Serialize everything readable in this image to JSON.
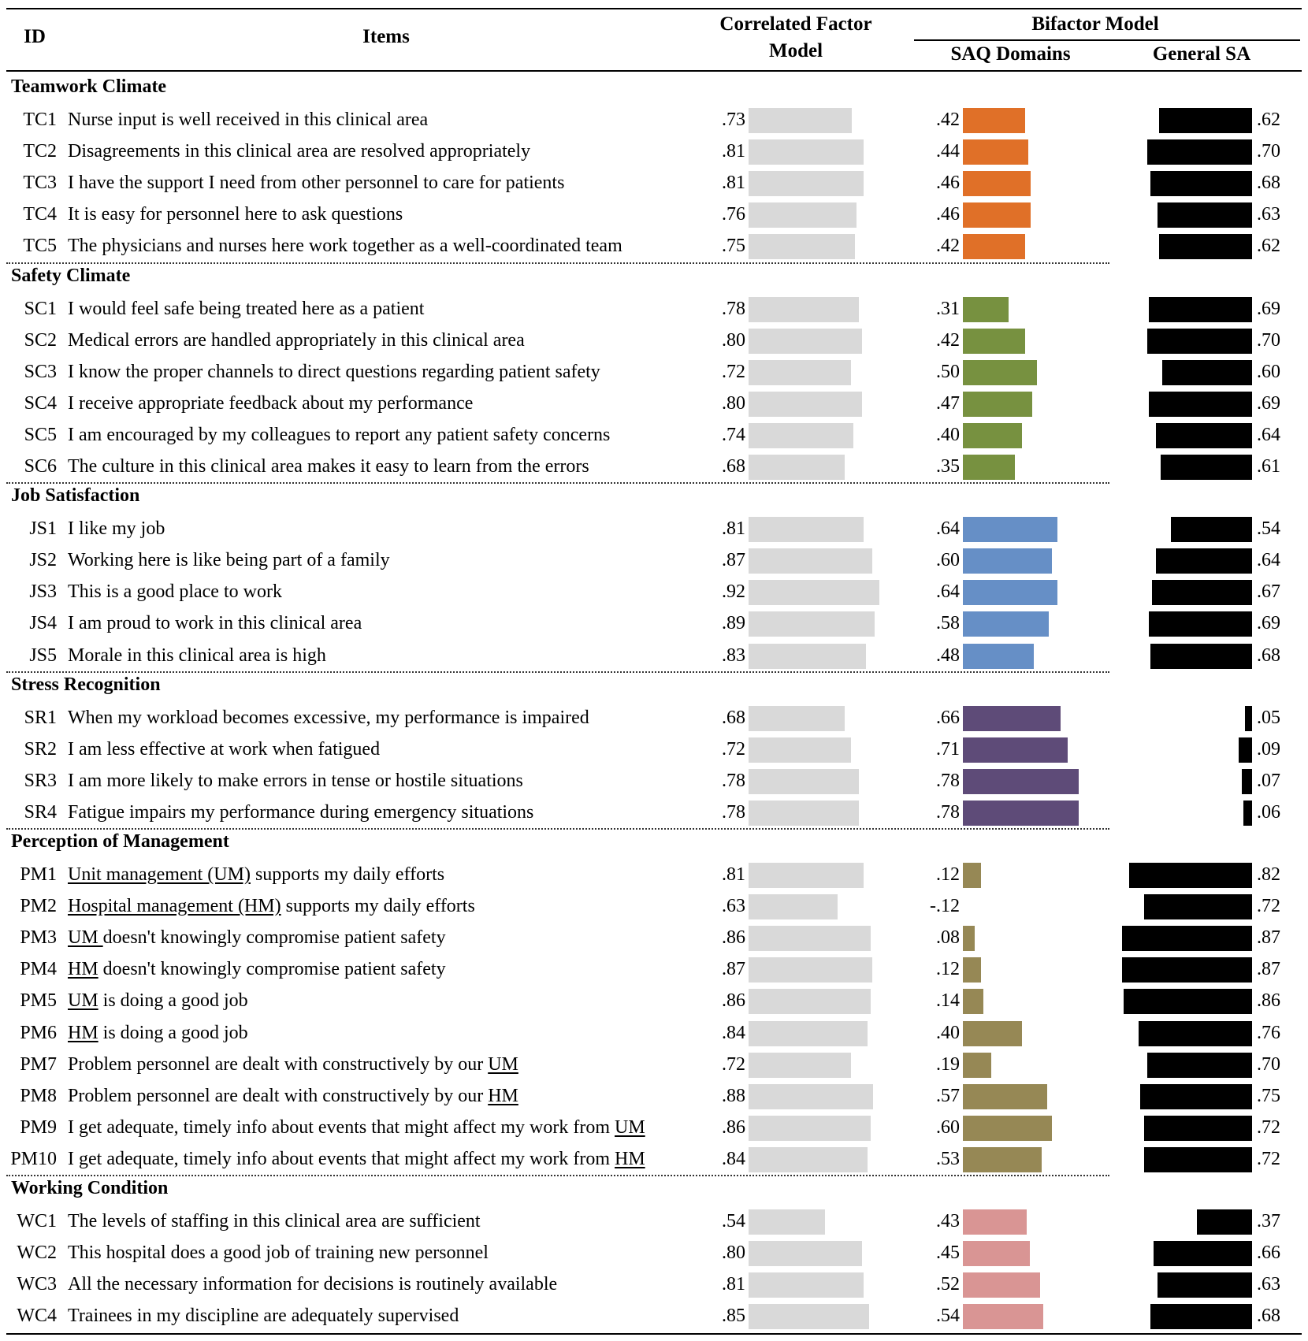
{
  "chart_data": {
    "type": "table",
    "title": "",
    "columns": {
      "id": "ID",
      "items": "Items",
      "cf_line1": "Correlated Factor",
      "cf_line2": "Model",
      "bifactor": "Bifactor Model",
      "saq": "SAQ Domains",
      "general": "General SA"
    },
    "series": [
      {
        "name": "Correlated Factor Model",
        "color": "#d9d9d9"
      },
      {
        "name": "SAQ Domains",
        "color": "by-domain"
      },
      {
        "name": "General SA",
        "color": "#000000"
      }
    ],
    "domains": [
      {
        "name": "Teamwork Climate",
        "color": "#e07028",
        "items": [
          {
            "id": "TC1",
            "text": "Nurse input is well received in this clinical area",
            "cf": 0.73,
            "cf_label": ".73",
            "saq": 0.42,
            "saq_label": ".42",
            "gen": 0.62,
            "gen_label": ".62"
          },
          {
            "id": "TC2",
            "text": "Disagreements in this clinical area are resolved appropriately",
            "cf": 0.81,
            "cf_label": ".81",
            "saq": 0.44,
            "saq_label": ".44",
            "gen": 0.7,
            "gen_label": ".70"
          },
          {
            "id": "TC3",
            "text": "I have the support I need from other personnel to care for patients",
            "cf": 0.81,
            "cf_label": ".81",
            "saq": 0.46,
            "saq_label": ".46",
            "gen": 0.68,
            "gen_label": ".68"
          },
          {
            "id": "TC4",
            "text": "It is easy for personnel here to ask questions",
            "cf": 0.76,
            "cf_label": ".76",
            "saq": 0.46,
            "saq_label": ".46",
            "gen": 0.63,
            "gen_label": ".63"
          },
          {
            "id": "TC5",
            "text": "The physicians and nurses here work together as a well-coordinated team",
            "cf": 0.75,
            "cf_label": ".75",
            "saq": 0.42,
            "saq_label": ".42",
            "gen": 0.62,
            "gen_label": ".62"
          }
        ]
      },
      {
        "name": "Safety Climate",
        "color": "#779140",
        "items": [
          {
            "id": "SC1",
            "text": "I would feel safe being treated here as a patient",
            "cf": 0.78,
            "cf_label": ".78",
            "saq": 0.31,
            "saq_label": ".31",
            "gen": 0.69,
            "gen_label": ".69"
          },
          {
            "id": "SC2",
            "text": "Medical errors are handled appropriately in this clinical area",
            "cf": 0.8,
            "cf_label": ".80",
            "saq": 0.42,
            "saq_label": ".42",
            "gen": 0.7,
            "gen_label": ".70"
          },
          {
            "id": "SC3",
            "text": "I know the proper channels to direct questions regarding patient safety",
            "cf": 0.72,
            "cf_label": ".72",
            "saq": 0.5,
            "saq_label": ".50",
            "gen": 0.6,
            "gen_label": ".60"
          },
          {
            "id": "SC4",
            "text": "I receive appropriate feedback about my performance",
            "cf": 0.8,
            "cf_label": ".80",
            "saq": 0.47,
            "saq_label": ".47",
            "gen": 0.69,
            "gen_label": ".69"
          },
          {
            "id": "SC5",
            "text": "I am encouraged by my colleagues to report any patient safety concerns",
            "cf": 0.74,
            "cf_label": ".74",
            "saq": 0.4,
            "saq_label": ".40",
            "gen": 0.64,
            "gen_label": ".64"
          },
          {
            "id": "SC6",
            "text": "The culture in this clinical area makes it easy to learn from the errors",
            "cf": 0.68,
            "cf_label": ".68",
            "saq": 0.35,
            "saq_label": ".35",
            "gen": 0.61,
            "gen_label": ".61"
          }
        ]
      },
      {
        "name": "Job Satisfaction",
        "color": "#668fc6",
        "items": [
          {
            "id": "JS1",
            "text": "I like my job",
            "cf": 0.81,
            "cf_label": ".81",
            "saq": 0.64,
            "saq_label": ".64",
            "gen": 0.54,
            "gen_label": ".54"
          },
          {
            "id": "JS2",
            "text": "Working here is like being part of a family",
            "cf": 0.87,
            "cf_label": ".87",
            "saq": 0.6,
            "saq_label": ".60",
            "gen": 0.64,
            "gen_label": ".64"
          },
          {
            "id": "JS3",
            "text": "This is a good place to work",
            "cf": 0.92,
            "cf_label": ".92",
            "saq": 0.64,
            "saq_label": ".64",
            "gen": 0.67,
            "gen_label": ".67"
          },
          {
            "id": "JS4",
            "text": "I am proud to work in this clinical area",
            "cf": 0.89,
            "cf_label": ".89",
            "saq": 0.58,
            "saq_label": ".58",
            "gen": 0.69,
            "gen_label": ".69"
          },
          {
            "id": "JS5",
            "text": "Morale in this clinical area is high",
            "cf": 0.83,
            "cf_label": ".83",
            "saq": 0.48,
            "saq_label": ".48",
            "gen": 0.68,
            "gen_label": ".68"
          }
        ]
      },
      {
        "name": "Stress Recognition",
        "color": "#5e4b78",
        "items": [
          {
            "id": "SR1",
            "text": "When my workload becomes excessive, my performance is impaired",
            "cf": 0.68,
            "cf_label": ".68",
            "saq": 0.66,
            "saq_label": ".66",
            "gen": 0.05,
            "gen_label": ".05"
          },
          {
            "id": "SR2",
            "text": "I am less effective at work when fatigued",
            "cf": 0.72,
            "cf_label": ".72",
            "saq": 0.71,
            "saq_label": ".71",
            "gen": 0.09,
            "gen_label": ".09"
          },
          {
            "id": "SR3",
            "text": "I am more likely to make errors in tense or hostile situations",
            "cf": 0.78,
            "cf_label": ".78",
            "saq": 0.78,
            "saq_label": ".78",
            "gen": 0.07,
            "gen_label": ".07"
          },
          {
            "id": "SR4",
            "text": "Fatigue impairs my performance during emergency situations",
            "cf": 0.78,
            "cf_label": ".78",
            "saq": 0.78,
            "saq_label": ".78",
            "gen": 0.06,
            "gen_label": ".06"
          }
        ]
      },
      {
        "name": "Perception of Management",
        "color": "#968855",
        "items": [
          {
            "id": "PM1",
            "text_parts": [
              {
                "t": "Unit management (UM)",
                "u": true
              },
              {
                "t": " supports my daily efforts",
                "u": false
              }
            ],
            "cf": 0.81,
            "cf_label": ".81",
            "saq": 0.12,
            "saq_label": ".12",
            "gen": 0.82,
            "gen_label": ".82"
          },
          {
            "id": "PM2",
            "text_parts": [
              {
                "t": "Hospital management (HM)",
                "u": true
              },
              {
                "t": " supports my daily efforts",
                "u": false
              }
            ],
            "cf": 0.63,
            "cf_label": ".63",
            "saq": -0.12,
            "saq_label": "-.12",
            "gen": 0.72,
            "gen_label": ".72"
          },
          {
            "id": "PM3",
            "text_parts": [
              {
                "t": "UM ",
                "u": true
              },
              {
                "t": "doesn't knowingly compromise patient safety",
                "u": false
              }
            ],
            "cf": 0.86,
            "cf_label": ".86",
            "saq": 0.08,
            "saq_label": ".08",
            "gen": 0.87,
            "gen_label": ".87"
          },
          {
            "id": "PM4",
            "text_parts": [
              {
                "t": "HM",
                "u": true
              },
              {
                "t": " doesn't knowingly compromise patient safety",
                "u": false
              }
            ],
            "cf": 0.87,
            "cf_label": ".87",
            "saq": 0.12,
            "saq_label": ".12",
            "gen": 0.87,
            "gen_label": ".87"
          },
          {
            "id": "PM5",
            "text_parts": [
              {
                "t": "UM",
                "u": true
              },
              {
                "t": " is doing a good job",
                "u": false
              }
            ],
            "cf": 0.86,
            "cf_label": ".86",
            "saq": 0.14,
            "saq_label": ".14",
            "gen": 0.86,
            "gen_label": ".86"
          },
          {
            "id": "PM6",
            "text_parts": [
              {
                "t": "HM",
                "u": true
              },
              {
                "t": " is doing a good job",
                "u": false
              }
            ],
            "cf": 0.84,
            "cf_label": ".84",
            "saq": 0.4,
            "saq_label": ".40",
            "gen": 0.76,
            "gen_label": ".76"
          },
          {
            "id": "PM7",
            "text_parts": [
              {
                "t": "Problem personnel are dealt with constructively by our ",
                "u": false
              },
              {
                "t": "UM",
                "u": true
              }
            ],
            "cf": 0.72,
            "cf_label": ".72",
            "saq": 0.19,
            "saq_label": ".19",
            "gen": 0.7,
            "gen_label": ".70"
          },
          {
            "id": "PM8",
            "text_parts": [
              {
                "t": "Problem personnel are dealt with constructively by our ",
                "u": false
              },
              {
                "t": "HM",
                "u": true
              }
            ],
            "cf": 0.88,
            "cf_label": ".88",
            "saq": 0.57,
            "saq_label": ".57",
            "gen": 0.75,
            "gen_label": ".75"
          },
          {
            "id": "PM9",
            "text_parts": [
              {
                "t": "I get adequate, timely info about events that might affect my work from ",
                "u": false
              },
              {
                "t": "UM",
                "u": true
              }
            ],
            "cf": 0.86,
            "cf_label": ".86",
            "saq": 0.6,
            "saq_label": ".60",
            "gen": 0.72,
            "gen_label": ".72"
          },
          {
            "id": "PM10",
            "text_parts": [
              {
                "t": "I get adequate, timely info about events that might affect my work from ",
                "u": false
              },
              {
                "t": "HM",
                "u": true
              }
            ],
            "cf": 0.84,
            "cf_label": ".84",
            "saq": 0.53,
            "saq_label": ".53",
            "gen": 0.72,
            "gen_label": ".72"
          }
        ]
      },
      {
        "name": "Working Condition",
        "color": "#d99594",
        "items": [
          {
            "id": "WC1",
            "text": "The levels of staffing in this clinical area are sufficient",
            "cf": 0.54,
            "cf_label": ".54",
            "saq": 0.43,
            "saq_label": ".43",
            "gen": 0.37,
            "gen_label": ".37"
          },
          {
            "id": "WC2",
            "text": "This hospital does a good job of training new personnel",
            "cf": 0.8,
            "cf_label": ".80",
            "saq": 0.45,
            "saq_label": ".45",
            "gen": 0.66,
            "gen_label": ".66"
          },
          {
            "id": "WC3",
            "text": "All the necessary information for decisions is routinely available",
            "cf": 0.81,
            "cf_label": ".81",
            "saq": 0.52,
            "saq_label": ".52",
            "gen": 0.63,
            "gen_label": ".63"
          },
          {
            "id": "WC4",
            "text": "Trainees in my discipline are adequately supervised",
            "cf": 0.85,
            "cf_label": ".85",
            "saq": 0.54,
            "saq_label": ".54",
            "gen": 0.68,
            "gen_label": ".68"
          }
        ]
      }
    ],
    "xlim": [
      0,
      1
    ],
    "grid": false,
    "legend": "none"
  }
}
